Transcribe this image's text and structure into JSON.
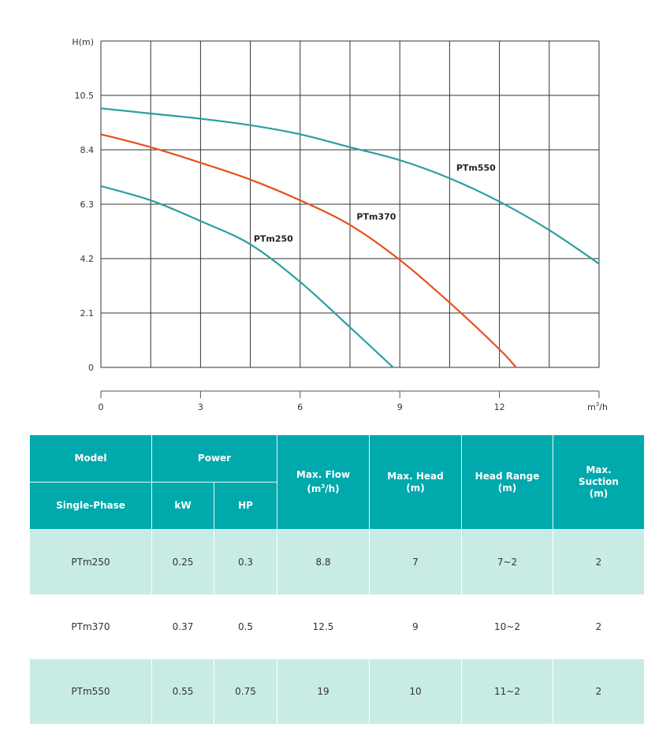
{
  "chart_data": {
    "type": "line",
    "ylabel": "H(m)",
    "xlabel_prefix": "m",
    "xlabel_sup": "3",
    "xlabel_suffix": "/h",
    "xlim": [
      0,
      15
    ],
    "ylim": [
      0,
      12.6
    ],
    "xticks": [
      "0",
      "3",
      "6",
      "9",
      "12"
    ],
    "xtick_values": [
      0,
      3,
      6,
      9,
      12
    ],
    "yticks": [
      "0",
      "2.1",
      "4.2",
      "6.3",
      "8.4",
      "10.5"
    ],
    "ytick_values": [
      0,
      2.1,
      4.2,
      6.3,
      8.4,
      10.5
    ],
    "grid": true,
    "series": [
      {
        "name": "PTm250",
        "color": "#2a9ea0",
        "label_at": [
          4.6,
          4.85
        ],
        "points": [
          [
            0,
            7.0
          ],
          [
            1.5,
            6.45
          ],
          [
            3,
            5.65
          ],
          [
            4.5,
            4.75
          ],
          [
            6,
            3.3
          ],
          [
            7.5,
            1.55
          ],
          [
            8.8,
            0
          ]
        ]
      },
      {
        "name": "PTm370",
        "color": "#e8501c",
        "label_at": [
          7.7,
          5.7
        ],
        "points": [
          [
            0,
            9.0
          ],
          [
            1.5,
            8.5
          ],
          [
            3,
            7.9
          ],
          [
            4.5,
            7.25
          ],
          [
            6,
            6.45
          ],
          [
            7.5,
            5.5
          ],
          [
            9,
            4.15
          ],
          [
            10.5,
            2.5
          ],
          [
            12,
            0.7
          ],
          [
            12.5,
            0
          ]
        ]
      },
      {
        "name": "PTm550",
        "color": "#2a9ea0",
        "label_at": [
          10.7,
          7.6
        ],
        "points": [
          [
            0,
            10.0
          ],
          [
            1.5,
            9.8
          ],
          [
            3,
            9.6
          ],
          [
            4.5,
            9.35
          ],
          [
            6,
            9.0
          ],
          [
            7.5,
            8.5
          ],
          [
            9,
            8.0
          ],
          [
            10.5,
            7.3
          ],
          [
            12,
            6.4
          ],
          [
            13.5,
            5.3
          ],
          [
            15,
            4.0
          ]
        ]
      }
    ]
  },
  "table": {
    "header": {
      "model": "Model",
      "power": "Power",
      "single_phase": "Single-Phase",
      "kw": "kW",
      "hp": "HP",
      "max_flow": "Max. Flow",
      "max_flow_unit_pre": "(m",
      "max_flow_unit_sup": "3",
      "max_flow_unit_post": "/h)",
      "max_head": "Max. Head",
      "max_head_unit": "(m)",
      "head_range": "Head Range",
      "head_range_unit": "(m)",
      "max_suction_1": "Max.",
      "max_suction_2": "Suction",
      "max_suction_unit": "(m)"
    },
    "rows": [
      [
        "PTm250",
        "0.25",
        "0.3",
        "8.8",
        "7",
        "7~2",
        "2"
      ],
      [
        "PTm370",
        "0.37",
        "0.5",
        "12.5",
        "9",
        "10~2",
        "2"
      ],
      [
        "PTm550",
        "0.55",
        "0.75",
        "19",
        "10",
        "11~2",
        "2"
      ]
    ]
  },
  "colors": {
    "header_bg": "#00a9ac",
    "row_alt": "#c8ebe6"
  }
}
